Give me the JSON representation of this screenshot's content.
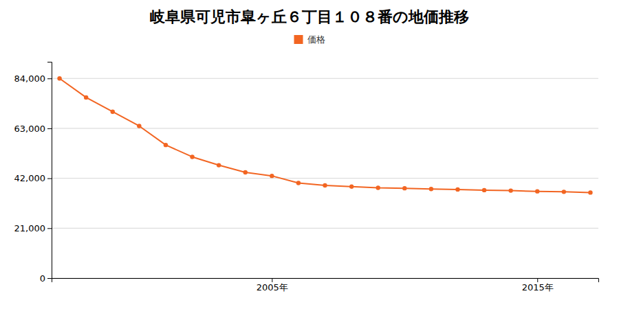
{
  "chart_data": {
    "type": "line",
    "title": "岐阜県可児市皐ヶ丘６丁目１０８番の地価推移",
    "x": [
      1997,
      1998,
      1999,
      2000,
      2001,
      2002,
      2003,
      2004,
      2005,
      2006,
      2007,
      2008,
      2009,
      2010,
      2011,
      2012,
      2013,
      2014,
      2015,
      2016,
      2017
    ],
    "series": [
      {
        "name": "価格",
        "color": "#f26522",
        "marker": "circle",
        "values": [
          84000,
          76000,
          70000,
          64000,
          56000,
          51000,
          47500,
          44500,
          43000,
          40000,
          39000,
          38500,
          38000,
          37800,
          37500,
          37300,
          37000,
          36800,
          36500,
          36300,
          36000
        ]
      }
    ],
    "xlim": [
      1996.7,
      2017.3
    ],
    "xticks": [
      {
        "value": 2005,
        "label": "2005年"
      },
      {
        "value": 2015,
        "label": "2015年"
      }
    ],
    "ylim": [
      0,
      91000
    ],
    "yticks": [
      0,
      {
        "value": 21000,
        "label": "21,000"
      },
      {
        "value": 42000,
        "label": "42,000"
      },
      {
        "value": 63000,
        "label": "63,000"
      },
      {
        "value": 84000,
        "label": "84,000"
      }
    ],
    "grid": true,
    "legend": "top"
  }
}
